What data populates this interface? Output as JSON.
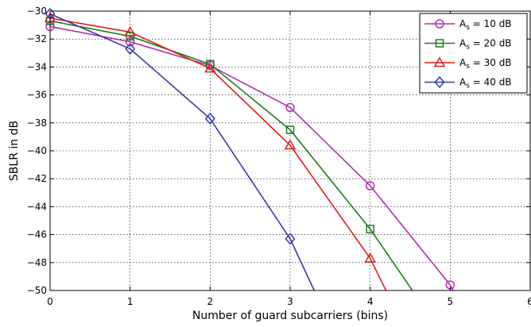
{
  "chart_data": {
    "type": "line",
    "xlabel": "Number of guard subcarriers (bins)",
    "ylabel": "SBLR in dB",
    "xlim": [
      0,
      6
    ],
    "ylim": [
      -50,
      -30
    ],
    "xticks": [
      0,
      1,
      2,
      3,
      4,
      5,
      6
    ],
    "yticks": [
      -30,
      -32,
      -34,
      -36,
      -38,
      -40,
      -42,
      -44,
      -46,
      -48,
      -50
    ],
    "x_tick_labels": [
      "0",
      "1",
      "2",
      "3",
      "4",
      "5",
      "6"
    ],
    "y_tick_labels": [
      "−30",
      "−32",
      "−34",
      "−36",
      "−38",
      "−40",
      "−42",
      "−44",
      "−46",
      "−48",
      "−50"
    ],
    "grid": true,
    "legend_position": "top-right",
    "series": [
      {
        "name": "As = 10 dB",
        "legend_main": "A",
        "legend_sub": "s",
        "legend_rest": " = 10 dB",
        "color": "#b02fb0",
        "marker": "circle",
        "x": [
          0,
          1,
          2,
          3,
          4,
          5,
          5.1
        ],
        "y": [
          -31.1,
          -32.2,
          -33.9,
          -36.9,
          -42.5,
          -49.6,
          -50.6
        ]
      },
      {
        "name": "As = 20 dB",
        "legend_main": "A",
        "legend_sub": "s",
        "legend_rest": " = 20 dB",
        "color": "#1e7d1e",
        "marker": "square",
        "x": [
          0,
          1,
          2,
          3,
          4,
          4.6
        ],
        "y": [
          -30.7,
          -31.8,
          -33.8,
          -38.5,
          -45.6,
          -50.6
        ]
      },
      {
        "name": "As = 30 dB",
        "legend_main": "A",
        "legend_sub": "s",
        "legend_rest": " = 30 dB",
        "color": "#e51c1c",
        "marker": "triangle",
        "x": [
          0,
          1,
          2,
          3,
          4,
          4.25
        ],
        "y": [
          -30.5,
          -31.5,
          -34.1,
          -39.6,
          -47.7,
          -50.6
        ]
      },
      {
        "name": "As = 40 dB",
        "legend_main": "A",
        "legend_sub": "s",
        "legend_rest": " = 40 dB",
        "color": "#3a3aa8",
        "marker": "diamond",
        "x": [
          0,
          1,
          2,
          3,
          3.35
        ],
        "y": [
          -30.2,
          -32.7,
          -37.7,
          -46.3,
          -50.6
        ]
      }
    ]
  }
}
